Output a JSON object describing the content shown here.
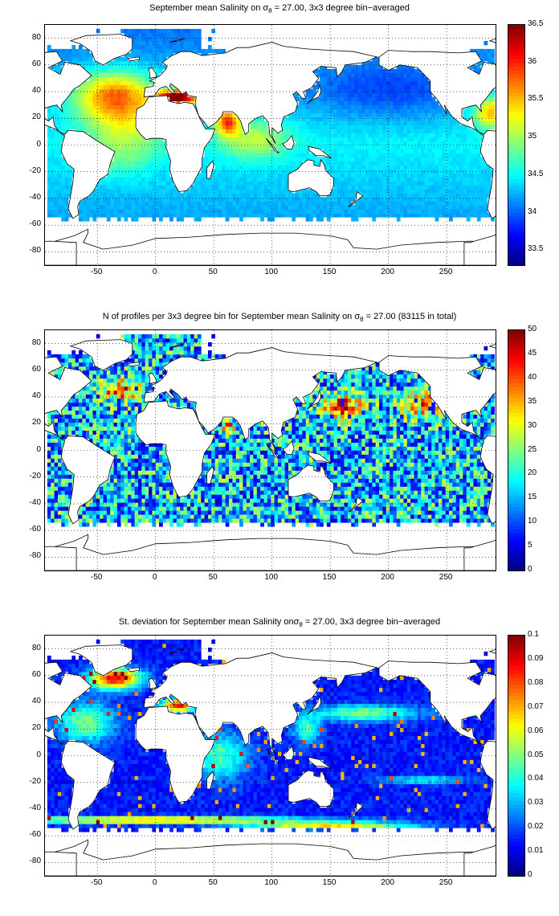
{
  "panels": [
    {
      "title_pre": "September mean Salinity on σ",
      "title_sub": "θ",
      "title_post": " = 27.00, 3x3 degree bin−averaged",
      "colorbar": {
        "min": 33.3,
        "max": 36.5,
        "ticks": [
          "36.5",
          "36",
          "35.5",
          "35",
          "34.5",
          "34",
          "33.5"
        ],
        "tick_values": [
          36.5,
          36,
          35.5,
          35,
          34.5,
          34,
          33.5
        ]
      },
      "field": "salinity"
    },
    {
      "title_pre": "N of profiles per 3x3 degree bin for September mean Salinity on σ",
      "title_sub": "θ",
      "title_post": " = 27.00 (83115 in total)",
      "colorbar": {
        "min": 0,
        "max": 50,
        "ticks": [
          "50",
          "45",
          "40",
          "35",
          "30",
          "25",
          "20",
          "15",
          "10",
          "5",
          "0"
        ],
        "tick_values": [
          50,
          45,
          40,
          35,
          30,
          25,
          20,
          15,
          10,
          5,
          0
        ]
      },
      "field": "count"
    },
    {
      "title_pre": "St. deviation for September mean Salinity onσ",
      "title_sub": "θ",
      "title_post": " = 27.00, 3x3 degree bin−averaged",
      "colorbar": {
        "min": 0,
        "max": 0.1,
        "ticks": [
          "0.1",
          "0.09",
          "0.08",
          "0.07",
          "0.06",
          "0.05",
          "0.04",
          "0.03",
          "0.02",
          "0.01",
          "0"
        ],
        "tick_values": [
          0.1,
          0.09,
          0.08,
          0.07,
          0.06,
          0.05,
          0.04,
          0.03,
          0.02,
          0.01,
          0
        ]
      },
      "field": "stdev"
    }
  ],
  "axes": {
    "x_ticks": [
      "-50",
      "0",
      "50",
      "100",
      "150",
      "200",
      "250"
    ],
    "x_values": [
      -50,
      0,
      50,
      100,
      150,
      200,
      250
    ],
    "y_ticks": [
      "80",
      "60",
      "40",
      "20",
      "0",
      "-20",
      "-40",
      "-60",
      "-80"
    ],
    "y_values": [
      80,
      60,
      40,
      20,
      0,
      -20,
      -40,
      -60,
      -80
    ],
    "xlim": [
      -95,
      292
    ],
    "ylim": [
      -90,
      90
    ],
    "grid": "dotted"
  },
  "colormap": "jet",
  "colors": {
    "land_outline": "#000000",
    "background": "#ffffff"
  }
}
